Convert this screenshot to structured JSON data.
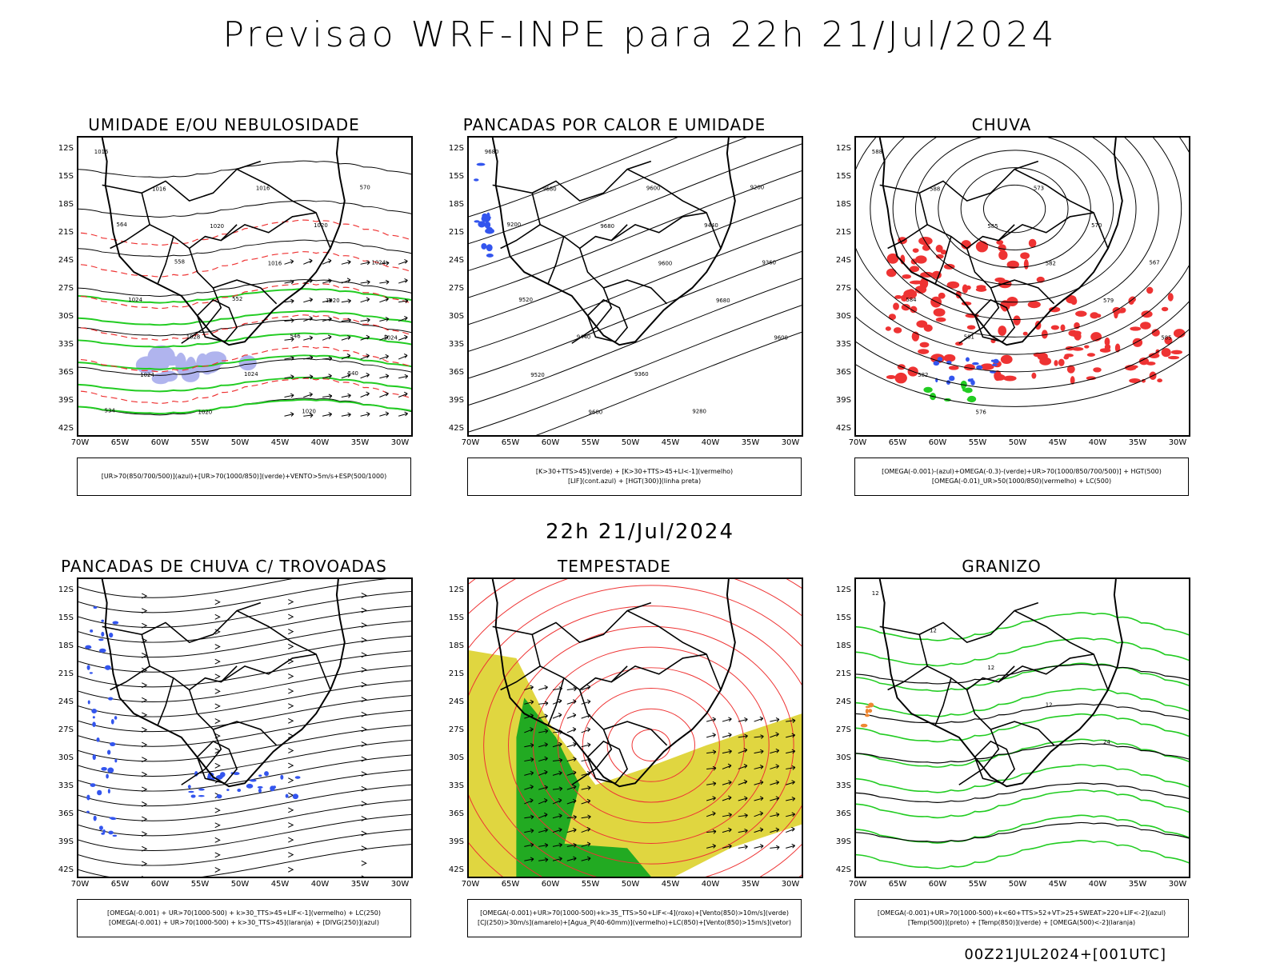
{
  "header": {
    "title": "Previsao WRF-INPE  para 22h 21/Jul/2024",
    "subtitle": "22h 21/Jul/2024",
    "footer": "00Z21JUL2024+[001UTC]"
  },
  "axes": {
    "lat_labels": [
      "12S",
      "15S",
      "18S",
      "21S",
      "24S",
      "27S",
      "30S",
      "33S",
      "36S",
      "39S",
      "42S"
    ],
    "lon_labels": [
      "70W",
      "65W",
      "60W",
      "55W",
      "50W",
      "45W",
      "40W",
      "35W",
      "30W"
    ]
  },
  "panels": [
    {
      "title": "UMIDADE E/OU NEBULOSIDADE",
      "legend": [
        "[UR>70(850/700/500)](azul)+[UR>70(1000/850)](verde)+VENTO>5m/s+ESP(500/1000)"
      ],
      "contour_labels": [
        "1016",
        "1016",
        "1020",
        "1016",
        "1020",
        "1024",
        "1024",
        "1020",
        "1016",
        "1020",
        "1024",
        "1024",
        "1028",
        "1024",
        "1020",
        "570",
        "564",
        "558",
        "552",
        "546",
        "540",
        "534"
      ]
    },
    {
      "title": "PANCADAS POR CALOR E UMIDADE",
      "legend": [
        "[K>30+TTS>45](verde) + [K>30+TTS>45+LI<-1](vermelho)",
        "[LIF](cont.azul) + [HGT(300)](linha preta)"
      ],
      "contour_labels": [
        "9680",
        "9680",
        "9680",
        "9600",
        "9680",
        "9600",
        "9520",
        "9600",
        "9600",
        "9440",
        "9360",
        "9520",
        "9440",
        "9360",
        "9280",
        "9200",
        "9200"
      ]
    },
    {
      "title": "CHUVA",
      "legend": [
        "[OMEGA(-0.001)-(azul)+OMEGA(-0.3)-(verde)+UR>70(1000/850/700/500)] + HGT(500)",
        "[OMEGA(-0.01)_UR>50(1000/850)(vermelho) + LC(500)"
      ],
      "contour_labels": [
        "588",
        "588",
        "585",
        "582",
        "579",
        "585",
        "582",
        "576",
        "573",
        "570",
        "567",
        "584",
        "581"
      ]
    },
    {
      "title": "PANCADAS DE CHUVA C/ TROVOADAS",
      "legend": [
        "[OMEGA(-0.001) + UR>70(1000-500) + k>30_TTS>45+LIF<-1](vermelho) + LC(250)",
        "[OMEGA(-0.001) + UR>70(1000-500) + k>30_TTS>45](laranja) + [DIVG(250)](azul)"
      ],
      "contour_labels": []
    },
    {
      "title": "TEMPESTADE",
      "legend": [
        "[OMEGA(-0.001)+UR>70(1000-500)+k>35_TTS>50+LIF<-4](roxo)+[Vento(850)>10m/s](verde)",
        "[CJ(250)>30m/s](amarelo)+[Agua_P(40-60mm)](vermelho)+LC(850)+[Vento(850)>15m/s](vetor)"
      ],
      "contour_labels": []
    },
    {
      "title": "GRANIZO",
      "legend": [
        "[OMEGA(-0.001)+UR>70(1000-500)+k<60+TTS>52+VT>25+SWEAT>220+LIF<-2](azul)",
        "[Temp(500)](preto) + [Temp(850)](verde) + [OMEGA(500)<-2](laranja)"
      ],
      "contour_labels": [
        "12",
        "12",
        "12",
        "12",
        "24"
      ]
    }
  ],
  "colors": {
    "map_line": "#000000",
    "green": "#22cc22",
    "red": "#ee3333",
    "blue": "#3355ee",
    "lavender": "#b0b4ee",
    "yellow": "#e0d640",
    "forest_green": "#22aa22"
  }
}
